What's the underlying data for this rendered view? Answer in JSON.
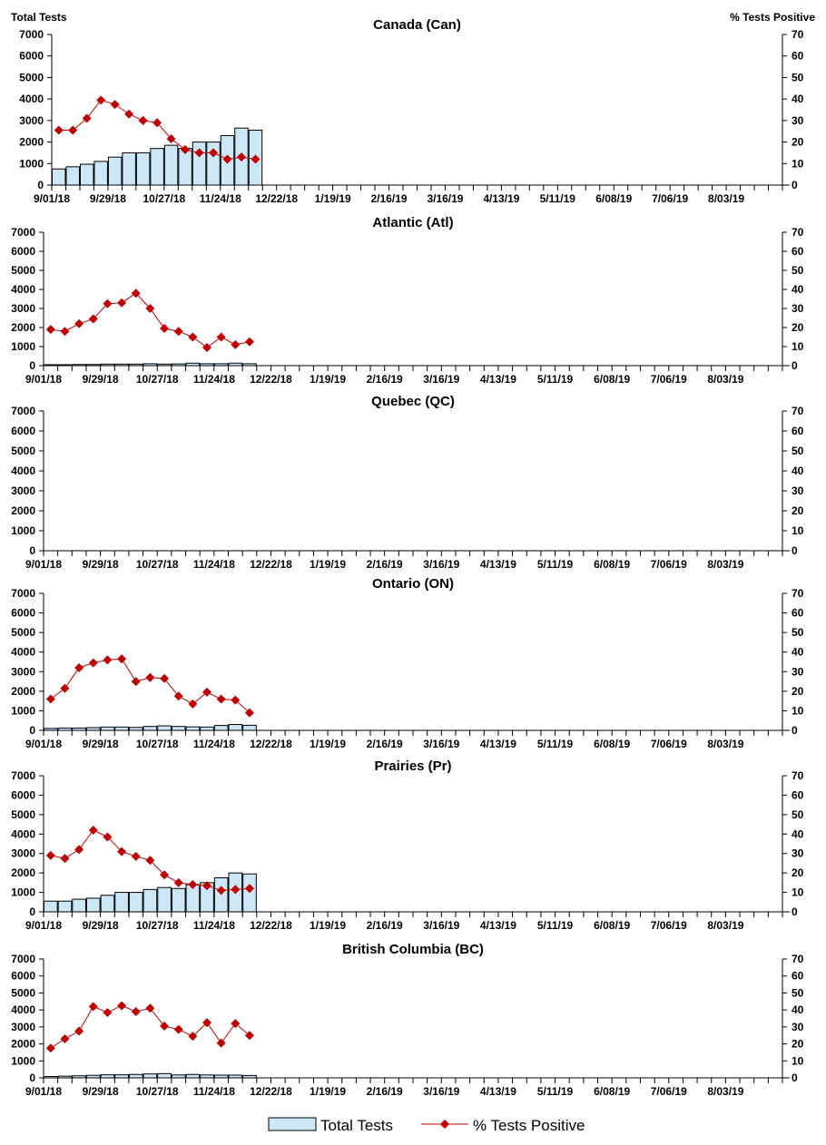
{
  "chart_data": [
    {
      "type": "bar+line",
      "title": "Canada (Can)",
      "ylabel_left": "Total Tests",
      "ylabel_right": "% Tests Positive",
      "total_tests": [
        750,
        850,
        970,
        1100,
        1300,
        1500,
        1500,
        1700,
        1850,
        1700,
        2000,
        2000,
        2300,
        2650,
        2550
      ],
      "pct_positive": [
        25.5,
        25.5,
        31,
        39.5,
        37.5,
        33,
        30,
        29,
        21.5,
        16.5,
        15,
        15,
        12,
        13,
        12
      ]
    },
    {
      "type": "bar+line",
      "title": "Atlantic (Atl)",
      "total_tests": [
        50,
        50,
        60,
        60,
        80,
        80,
        80,
        100,
        80,
        90,
        130,
        100,
        100,
        130,
        100
      ],
      "pct_positive": [
        19,
        18,
        22,
        24.5,
        32.5,
        33,
        38,
        30,
        19.5,
        18,
        15,
        9.5,
        15,
        11,
        12.5
      ]
    },
    {
      "type": "bar+line",
      "title": "Quebec (QC)",
      "total_tests": [],
      "pct_positive": []
    },
    {
      "type": "bar+line",
      "title": "Ontario (ON)",
      "total_tests": [
        100,
        120,
        120,
        140,
        170,
        170,
        150,
        200,
        230,
        200,
        180,
        170,
        250,
        300,
        260
      ],
      "pct_positive": [
        16,
        21.5,
        32,
        34.5,
        36,
        36.5,
        25,
        27,
        26.5,
        17.5,
        13.5,
        19.5,
        16,
        15.5,
        9
      ]
    },
    {
      "type": "bar+line",
      "title": "Prairies (Pr)",
      "total_tests": [
        550,
        550,
        650,
        700,
        850,
        1000,
        1000,
        1150,
        1250,
        1200,
        1400,
        1500,
        1750,
        2000,
        1950
      ],
      "pct_positive": [
        29,
        27.5,
        32,
        42,
        38.5,
        31,
        28.5,
        26.5,
        19,
        15,
        14,
        13.5,
        11,
        11.5,
        12
      ]
    },
    {
      "type": "bar+line",
      "title": "British Columbia (BC)",
      "total_tests": [
        80,
        100,
        120,
        150,
        180,
        180,
        200,
        230,
        250,
        170,
        200,
        170,
        160,
        160,
        140
      ],
      "pct_positive": [
        17.5,
        23,
        27.5,
        42,
        38.5,
        42.5,
        39,
        41,
        30.5,
        28.5,
        24.5,
        32.5,
        20.5,
        32,
        25
      ]
    }
  ],
  "axes": {
    "weeks": 52,
    "x_tick_labels": [
      "9/01/18",
      "9/29/18",
      "10/27/18",
      "11/24/18",
      "12/22/18",
      "1/19/19",
      "2/16/19",
      "3/16/19",
      "4/13/19",
      "5/11/19",
      "6/08/19",
      "7/06/19",
      "8/03/19"
    ],
    "x_label_every_weeks": 4,
    "y_left": {
      "range": [
        0,
        7000
      ],
      "ticks": [
        0,
        1000,
        2000,
        3000,
        4000,
        5000,
        6000,
        7000
      ]
    },
    "y_right": {
      "range": [
        0,
        70
      ],
      "ticks": [
        0,
        10,
        20,
        30,
        40,
        50,
        60,
        70
      ]
    },
    "grid": false
  },
  "legend": {
    "placement": "bottom",
    "items": [
      {
        "label": "Total Tests",
        "color": "#cce8f8"
      },
      {
        "label": "% Tests Positive",
        "color": "#c00000"
      }
    ]
  },
  "colors": {
    "bar_fill": "#cce8f8",
    "bar_stroke": "#000000",
    "line": "#c00000",
    "marker": "#c00000"
  }
}
